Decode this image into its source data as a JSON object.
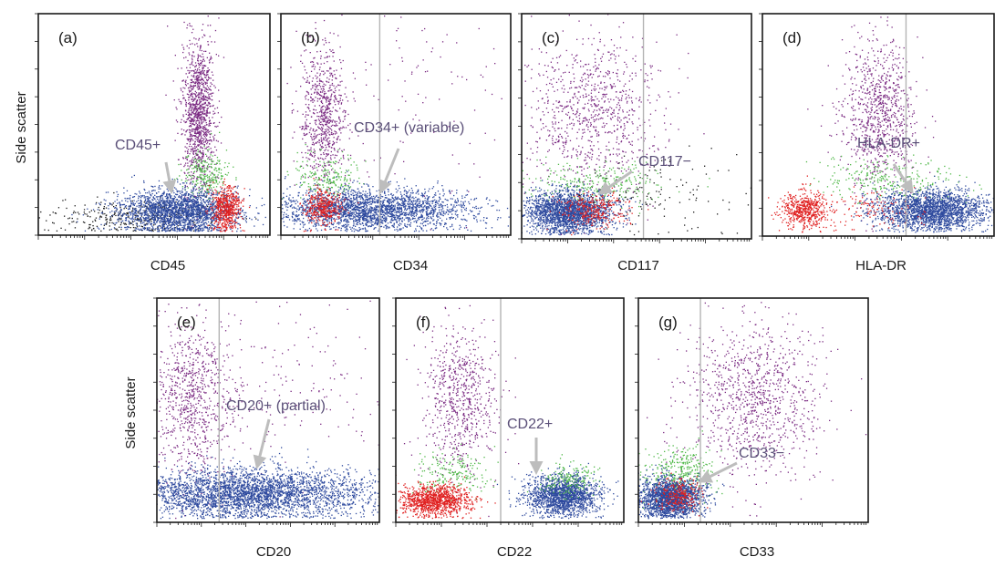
{
  "figure": {
    "y_label": "Side scatter"
  },
  "colors": {
    "granulocytes": "#7a2a82",
    "mixed": "#4fb848",
    "blasts": "#2e4a9e",
    "lymphocytes": "#e02020",
    "debris": "#1a1a1a",
    "gate_line": "#b4b4b4",
    "arrow": "#bdbdbd",
    "annotation_text": "#5a4f78"
  },
  "chart_data": [
    {
      "type": "scatter",
      "panel": "(a)",
      "xlabel": "CD45",
      "ylabel": "Side scatter",
      "x_scale": "log",
      "annotation": "CD45+",
      "populations": [
        {
          "color": "granulocytes",
          "count": 1200,
          "x_center": 0.69,
          "x_sd": 0.035,
          "y_center": 0.55,
          "y_sd": 0.18
        },
        {
          "color": "mixed",
          "count": 260,
          "x_center": 0.72,
          "x_sd": 0.05,
          "y_center": 0.27,
          "y_sd": 0.05
        },
        {
          "color": "debris",
          "count": 380,
          "x_center": 0.42,
          "x_sd": 0.18,
          "y_center": 0.08,
          "y_sd": 0.04
        },
        {
          "color": "blasts",
          "count": 2200,
          "x_center": 0.6,
          "x_sd": 0.13,
          "y_center": 0.11,
          "y_sd": 0.05
        },
        {
          "color": "lymphocytes",
          "count": 550,
          "x_center": 0.81,
          "x_sd": 0.03,
          "y_center": 0.12,
          "y_sd": 0.05
        }
      ]
    },
    {
      "type": "scatter",
      "panel": "(b)",
      "xlabel": "CD34",
      "x_scale": "log",
      "gate": 0.43,
      "annotation": "CD34+ (variable)",
      "populations": [
        {
          "color": "granulocytes",
          "count": 700,
          "x_center": 0.18,
          "x_sd": 0.05,
          "y_center": 0.55,
          "y_sd": 0.15
        },
        {
          "color": "mixed",
          "count": 220,
          "x_center": 0.2,
          "x_sd": 0.07,
          "y_center": 0.26,
          "y_sd": 0.05
        },
        {
          "color": "blasts",
          "count": 2500,
          "x_center": 0.38,
          "x_sd": 0.22,
          "y_center": 0.12,
          "y_sd": 0.045
        },
        {
          "color": "lymphocytes",
          "count": 360,
          "x_center": 0.18,
          "x_sd": 0.04,
          "y_center": 0.13,
          "y_sd": 0.04
        },
        {
          "color": "granulocytes",
          "count": 150,
          "x_center": 0.5,
          "x_sd": 0.3,
          "y_center": 0.6,
          "y_sd": 0.25
        }
      ]
    },
    {
      "type": "scatter",
      "panel": "(c)",
      "xlabel": "CD117",
      "x_scale": "log",
      "gate": 0.53,
      "annotation": "CD117−",
      "populations": [
        {
          "color": "granulocytes",
          "count": 900,
          "x_center": 0.3,
          "x_sd": 0.15,
          "y_center": 0.55,
          "y_sd": 0.18
        },
        {
          "color": "mixed",
          "count": 300,
          "x_center": 0.3,
          "x_sd": 0.15,
          "y_center": 0.24,
          "y_sd": 0.05
        },
        {
          "color": "blasts",
          "count": 2200,
          "x_center": 0.2,
          "x_sd": 0.1,
          "y_center": 0.12,
          "y_sd": 0.045
        },
        {
          "color": "lymphocytes",
          "count": 300,
          "x_center": 0.32,
          "x_sd": 0.07,
          "y_center": 0.13,
          "y_sd": 0.04
        },
        {
          "color": "debris",
          "count": 120,
          "x_center": 0.6,
          "x_sd": 0.2,
          "y_center": 0.2,
          "y_sd": 0.1
        }
      ]
    },
    {
      "type": "scatter",
      "panel": "(d)",
      "xlabel": "HLA-DR",
      "x_scale": "log",
      "gate": 0.62,
      "annotation": "HLA-DR+",
      "populations": [
        {
          "color": "granulocytes",
          "count": 900,
          "x_center": 0.5,
          "x_sd": 0.08,
          "y_center": 0.55,
          "y_sd": 0.18
        },
        {
          "color": "mixed",
          "count": 280,
          "x_center": 0.55,
          "x_sd": 0.15,
          "y_center": 0.25,
          "y_sd": 0.05
        },
        {
          "color": "blasts",
          "count": 2200,
          "x_center": 0.73,
          "x_sd": 0.12,
          "y_center": 0.12,
          "y_sd": 0.045
        },
        {
          "color": "lymphocytes",
          "count": 550,
          "x_center": 0.18,
          "x_sd": 0.05,
          "y_center": 0.12,
          "y_sd": 0.04
        },
        {
          "color": "lymphocytes",
          "count": 120,
          "x_center": 0.45,
          "x_sd": 0.12,
          "y_center": 0.12,
          "y_sd": 0.04
        }
      ]
    },
    {
      "type": "scatter",
      "panel": "(e)",
      "xlabel": "CD20",
      "ylabel": "Side scatter",
      "x_scale": "log",
      "gate": 0.28,
      "annotation": "CD20+ (partial)",
      "populations": [
        {
          "color": "granulocytes",
          "count": 800,
          "x_center": 0.15,
          "x_sd": 0.1,
          "y_center": 0.55,
          "y_sd": 0.18
        },
        {
          "color": "granulocytes",
          "count": 200,
          "x_center": 0.6,
          "x_sd": 0.3,
          "y_center": 0.6,
          "y_sd": 0.2
        },
        {
          "color": "blasts",
          "count": 3500,
          "x_center": 0.4,
          "x_sd": 0.28,
          "y_center": 0.13,
          "y_sd": 0.055
        }
      ]
    },
    {
      "type": "scatter",
      "panel": "(f)",
      "xlabel": "CD22",
      "x_scale": "log",
      "gate": 0.46,
      "annotation": "CD22+",
      "populations": [
        {
          "color": "granulocytes",
          "count": 700,
          "x_center": 0.28,
          "x_sd": 0.08,
          "y_center": 0.55,
          "y_sd": 0.16
        },
        {
          "color": "mixed",
          "count": 200,
          "x_center": 0.25,
          "x_sd": 0.08,
          "y_center": 0.22,
          "y_sd": 0.05
        },
        {
          "color": "lymphocytes",
          "count": 1100,
          "x_center": 0.17,
          "x_sd": 0.08,
          "y_center": 0.1,
          "y_sd": 0.035
        },
        {
          "color": "blasts",
          "count": 1700,
          "x_center": 0.73,
          "x_sd": 0.08,
          "y_center": 0.12,
          "y_sd": 0.045
        },
        {
          "color": "mixed",
          "count": 180,
          "x_center": 0.76,
          "x_sd": 0.06,
          "y_center": 0.2,
          "y_sd": 0.04
        }
      ]
    },
    {
      "type": "scatter",
      "panel": "(g)",
      "xlabel": "CD33",
      "x_scale": "log",
      "gate": 0.27,
      "annotation": "CD33−",
      "populations": [
        {
          "color": "granulocytes",
          "count": 1000,
          "x_center": 0.5,
          "x_sd": 0.15,
          "y_center": 0.55,
          "y_sd": 0.18
        },
        {
          "color": "mixed",
          "count": 350,
          "x_center": 0.18,
          "x_sd": 0.08,
          "y_center": 0.22,
          "y_sd": 0.06
        },
        {
          "color": "blasts",
          "count": 2000,
          "x_center": 0.14,
          "x_sd": 0.07,
          "y_center": 0.11,
          "y_sd": 0.045
        },
        {
          "color": "lymphocytes",
          "count": 260,
          "x_center": 0.17,
          "x_sd": 0.05,
          "y_center": 0.12,
          "y_sd": 0.035
        }
      ]
    }
  ]
}
